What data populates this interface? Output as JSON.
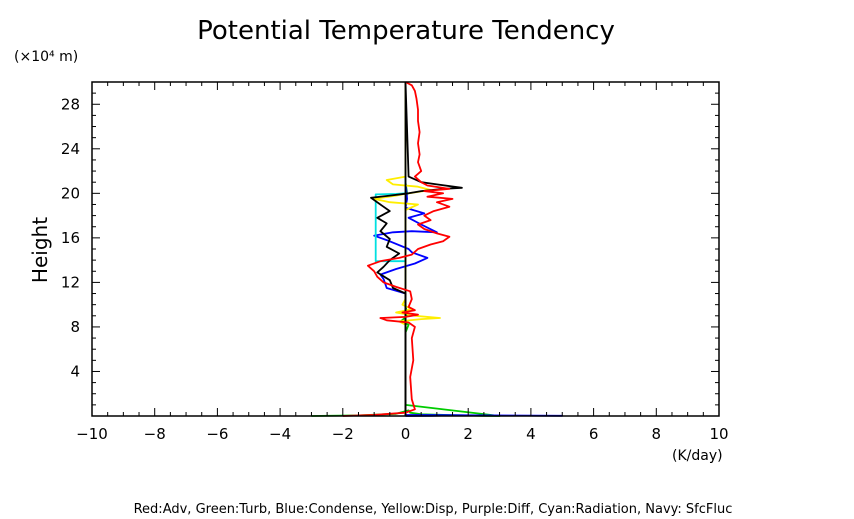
{
  "chart_data": {
    "type": "line",
    "title": "Potential Temperature Tendency",
    "ylabel": "Height",
    "y_unit_label": "(×10⁴ m)",
    "x_unit_label": "(K/day)",
    "xlim": [
      -10,
      10
    ],
    "ylim": [
      0,
      30
    ],
    "x_ticks": [
      -10,
      -8,
      -6,
      -4,
      -2,
      0,
      2,
      4,
      6,
      8,
      10
    ],
    "y_ticks": [
      4,
      8,
      12,
      16,
      20,
      24,
      28
    ],
    "grid": false,
    "legend_text": "Red:Adv, Green:Turb, Blue:Condense, Yellow:Disp, Purple:Diff, Cyan:Radiation, Navy: SfcFluc",
    "series": [
      {
        "color": "#00cc00",
        "points": [
          [
            -3.0,
            0.0
          ],
          [
            -1.5,
            0.05
          ],
          [
            -0.3,
            0.2
          ],
          [
            0.1,
            0.5
          ],
          [
            0.15,
            0.3
          ],
          [
            0.5,
            0.15
          ],
          [
            1.5,
            0.08
          ],
          [
            2.5,
            0.02
          ],
          [
            3.0,
            0.0
          ],
          [
            0,
            1
          ],
          [
            0,
            7.5
          ],
          [
            0.1,
            8.2
          ],
          [
            -0.15,
            8.5
          ],
          [
            0.05,
            9
          ],
          [
            0,
            10
          ],
          [
            0,
            19
          ],
          [
            0.05,
            20
          ],
          [
            0,
            21
          ],
          [
            0,
            30
          ]
        ]
      },
      {
        "color": "#0000ff",
        "points": [
          [
            0,
            0
          ],
          [
            0.8,
            0.02
          ],
          [
            1.5,
            0.05
          ],
          [
            2.6,
            0.05
          ],
          [
            5.0,
            0.02
          ],
          [
            0,
            0.1
          ],
          [
            0,
            11
          ],
          [
            -0.6,
            11.5
          ],
          [
            -0.7,
            12.3
          ],
          [
            -0.8,
            12.7
          ],
          [
            -0.3,
            13.2
          ],
          [
            0.3,
            13.7
          ],
          [
            0.7,
            14.2
          ],
          [
            0.2,
            14.7
          ],
          [
            0.1,
            15
          ],
          [
            -0.6,
            15.8
          ],
          [
            -1.0,
            16.2
          ],
          [
            -0.4,
            16.5
          ],
          [
            0.2,
            16.6
          ],
          [
            1.0,
            16.5
          ],
          [
            0.5,
            17.2
          ],
          [
            0.1,
            17.8
          ],
          [
            0.6,
            18.2
          ],
          [
            0.0,
            18.7
          ],
          [
            0.05,
            19.5
          ],
          [
            0,
            21
          ],
          [
            0,
            30
          ]
        ]
      },
      {
        "color": "#00e0e0",
        "points": [
          [
            0,
            0
          ],
          [
            0,
            13.9
          ],
          [
            -0.95,
            13.9
          ],
          [
            -0.95,
            19.9
          ],
          [
            -0.3,
            19.95
          ],
          [
            0,
            20
          ],
          [
            0,
            30
          ]
        ]
      },
      {
        "color": "#ffee00",
        "points": [
          [
            0,
            0
          ],
          [
            0,
            8.2
          ],
          [
            -0.2,
            8.5
          ],
          [
            0.5,
            8.7
          ],
          [
            1.1,
            8.8
          ],
          [
            0.3,
            9.0
          ],
          [
            -0.3,
            9.3
          ],
          [
            0.2,
            9.6
          ],
          [
            -0.1,
            10
          ],
          [
            0,
            10.5
          ],
          [
            0,
            18.5
          ],
          [
            0.4,
            19.0
          ],
          [
            -0.5,
            19.2
          ],
          [
            -1.0,
            19.5
          ],
          [
            -0.3,
            19.8
          ],
          [
            0.1,
            20.0
          ],
          [
            0.8,
            20.3
          ],
          [
            0.4,
            20.6
          ],
          [
            -0.4,
            20.8
          ],
          [
            -0.6,
            21.2
          ],
          [
            0,
            21.5
          ],
          [
            0,
            30
          ]
        ]
      },
      {
        "color": "#000000",
        "points": [
          [
            0,
            0
          ],
          [
            0,
            11
          ],
          [
            -0.4,
            11.5
          ],
          [
            -0.5,
            12.2
          ],
          [
            -0.9,
            12.9
          ],
          [
            -0.7,
            13.4
          ],
          [
            -0.5,
            14.0
          ],
          [
            -0.2,
            14.6
          ],
          [
            -0.6,
            15.2
          ],
          [
            -0.5,
            15.9
          ],
          [
            -0.8,
            16.6
          ],
          [
            -0.6,
            17.3
          ],
          [
            -0.9,
            17.8
          ],
          [
            -0.5,
            18.4
          ],
          [
            -0.8,
            19.0
          ],
          [
            -1.1,
            19.6
          ],
          [
            -0.5,
            19.8
          ],
          [
            0.1,
            20.0
          ],
          [
            0.5,
            20.2
          ],
          [
            1.2,
            20.4
          ],
          [
            1.8,
            20.5
          ],
          [
            1.0,
            20.8
          ],
          [
            0.5,
            21.0
          ],
          [
            0.1,
            21.5
          ],
          [
            0,
            30
          ]
        ]
      },
      {
        "color": "#000000",
        "points": [
          [
            0,
            0
          ],
          [
            0,
            30
          ]
        ]
      },
      {
        "color": "#ff0000",
        "points": [
          [
            -2.0,
            0.0
          ],
          [
            -1.0,
            0.1
          ],
          [
            0.0,
            0.3
          ],
          [
            0.3,
            0.6
          ],
          [
            0.2,
            1.5
          ],
          [
            0.15,
            3.5
          ],
          [
            0.25,
            5.0
          ],
          [
            0.2,
            7.0
          ],
          [
            0.3,
            8.0
          ],
          [
            0.1,
            8.4
          ],
          [
            -0.6,
            8.6
          ],
          [
            -0.8,
            8.8
          ],
          [
            0.0,
            8.9
          ],
          [
            0.4,
            9.1
          ],
          [
            -0.1,
            9.3
          ],
          [
            0.3,
            9.5
          ],
          [
            0.1,
            9.8
          ],
          [
            0.2,
            10.5
          ],
          [
            0.15,
            11.2
          ],
          [
            -0.3,
            11.6
          ],
          [
            -0.7,
            12.0
          ],
          [
            -0.9,
            12.5
          ],
          [
            -1.0,
            13.0
          ],
          [
            -1.2,
            13.5
          ],
          [
            -0.8,
            13.9
          ],
          [
            -0.2,
            14.2
          ],
          [
            0.2,
            14.5
          ],
          [
            0.4,
            15.0
          ],
          [
            0.8,
            15.4
          ],
          [
            1.2,
            15.7
          ],
          [
            1.4,
            16.1
          ],
          [
            1.0,
            16.4
          ],
          [
            0.6,
            16.8
          ],
          [
            0.4,
            17.2
          ],
          [
            0.8,
            17.6
          ],
          [
            0.6,
            18.0
          ],
          [
            0.9,
            18.4
          ],
          [
            1.4,
            18.8
          ],
          [
            1.0,
            19.2
          ],
          [
            1.5,
            19.5
          ],
          [
            0.7,
            19.7
          ],
          [
            1.2,
            20.0
          ],
          [
            0.6,
            20.2
          ],
          [
            1.4,
            20.4
          ],
          [
            0.7,
            20.7
          ],
          [
            0.5,
            21.0
          ],
          [
            0.3,
            21.5
          ],
          [
            0.5,
            22.0
          ],
          [
            0.4,
            22.8
          ],
          [
            0.45,
            23.5
          ],
          [
            0.4,
            24.5
          ],
          [
            0.45,
            25.5
          ],
          [
            0.4,
            26.5
          ],
          [
            0.4,
            27.5
          ],
          [
            0.35,
            28.5
          ],
          [
            0.3,
            29.2
          ],
          [
            0.2,
            29.7
          ],
          [
            0.0,
            30.0
          ]
        ]
      }
    ]
  }
}
